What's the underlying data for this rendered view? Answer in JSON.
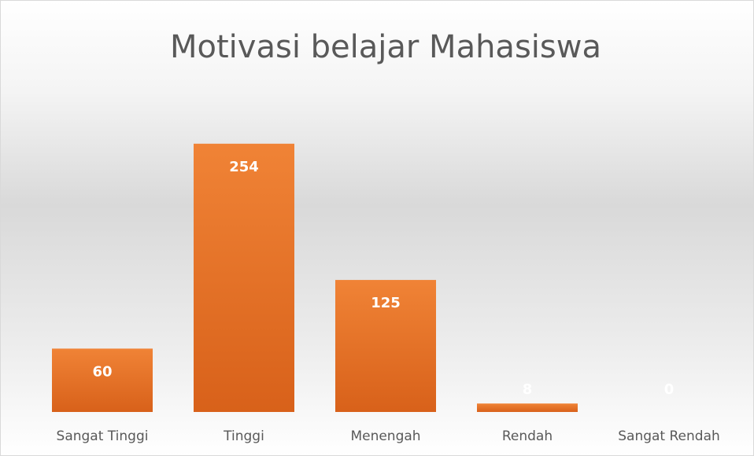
{
  "chart_data": {
    "type": "bar",
    "title": "Motivasi belajar Mahasiswa",
    "categories": [
      "Sangat Tinggi",
      "Tinggi",
      "Menengah",
      "Rendah",
      "Sangat Rendah"
    ],
    "values": [
      60,
      254,
      125,
      8,
      0
    ],
    "color": "#ed7d31",
    "ylim": [
      0,
      300
    ]
  }
}
